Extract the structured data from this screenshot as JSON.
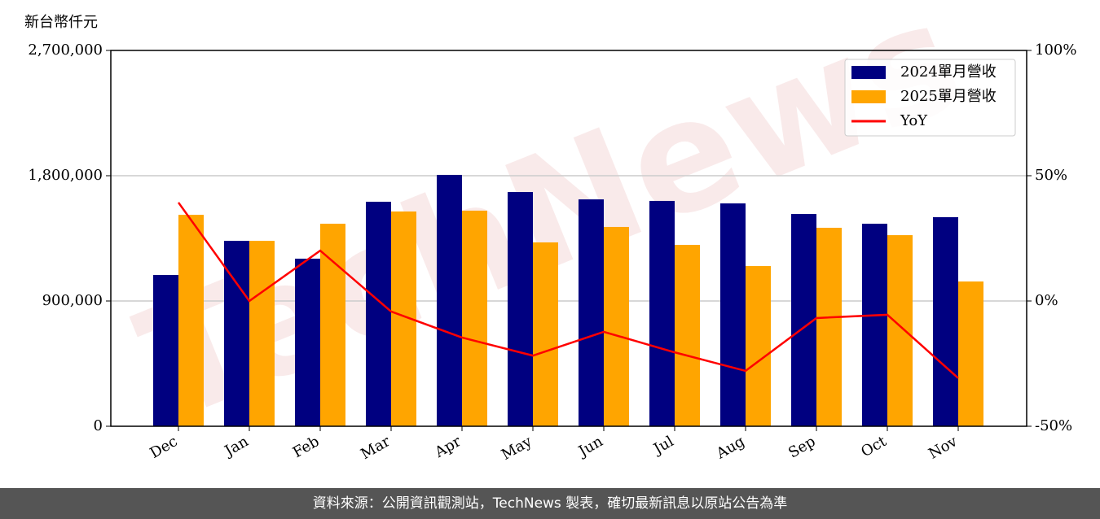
{
  "chart_data": {
    "type": "bar_line",
    "y_label": "新台幣仟元",
    "watermark": "TechNews",
    "categories": [
      "Dec",
      "Jan",
      "Feb",
      "Mar",
      "Apr",
      "May",
      "Jun",
      "Jul",
      "Aug",
      "Sep",
      "Oct",
      "Nov"
    ],
    "series": [
      {
        "name": "2024單月營收",
        "color": "#000080",
        "type": "bar",
        "values": [
          1087000,
          1332000,
          1204000,
          1613000,
          1806000,
          1683000,
          1630000,
          1619000,
          1601000,
          1525000,
          1455000,
          1502000
        ]
      },
      {
        "name": "2025單月營收",
        "color": "#ffa500",
        "type": "bar",
        "values": [
          1519000,
          1332000,
          1455000,
          1543000,
          1549000,
          1321000,
          1432000,
          1303000,
          1151000,
          1426000,
          1373000,
          1040000
        ]
      },
      {
        "name": "YoY",
        "color": "#ff0000",
        "type": "line",
        "axis": "y2",
        "values": [
          39.3,
          0,
          20.1,
          -4.2,
          -14.6,
          -21.8,
          -12.3,
          -20.5,
          -27.9,
          -6.8,
          -5.5,
          -30.8
        ]
      }
    ],
    "ylim": [
      0,
      2700000
    ],
    "yticks": [
      0,
      {
        "value": 900000,
        "label": "900,000"
      },
      {
        "value": 1800000,
        "label": "1,800,000"
      },
      {
        "value": 2700000,
        "label": "2,700,000"
      }
    ],
    "y2lim": [
      -50,
      100
    ],
    "y2ticks": [
      {
        "value": -50,
        "label": "-50%"
      },
      {
        "value": 0,
        "label": "0%"
      },
      {
        "value": 50,
        "label": "50%"
      },
      {
        "value": 100,
        "label": "100%"
      }
    ],
    "grid": true,
    "legend": "upper right"
  },
  "footer": "資料來源：公開資訊觀測站，TechNews 製表，確切最新訊息以原站公告為準"
}
